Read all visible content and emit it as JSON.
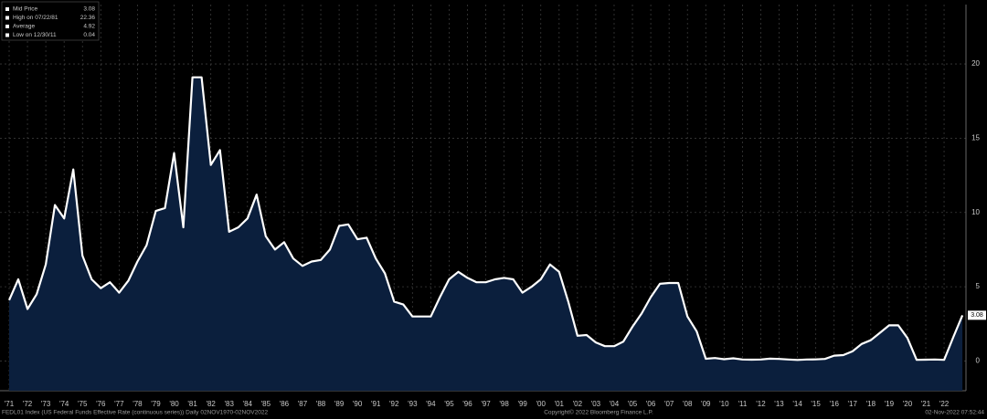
{
  "chart_data": {
    "type": "area",
    "legend": [
      {
        "label": "Mid Price",
        "value": 3.08
      },
      {
        "label": "High on 07/22/81",
        "value": 22.36
      },
      {
        "label": "Average",
        "value": 4.92
      },
      {
        "label": "Low on 12/30/11",
        "value": 0.04
      }
    ],
    "footer_left": "FEDL01 Index (US Federal Funds Effective Rate (continuous series)) Daily 02NOV1970-02NOV2022",
    "footer_center": "Copyright© 2022 Bloomberg Finance L.P.",
    "footer_right": "02-Nov-2022 07:52:44",
    "categories": [
      "'71",
      null,
      "'72",
      null,
      "'73",
      null,
      "'74",
      null,
      "'75",
      null,
      "'76",
      null,
      "'77",
      null,
      "'78",
      null,
      "'79",
      null,
      "'80",
      null,
      "'81",
      null,
      "'82",
      null,
      "'83",
      null,
      "'84",
      null,
      "'85",
      null,
      "'86",
      null,
      "'87",
      null,
      "'88",
      null,
      "'89",
      null,
      "'90",
      null,
      "'91",
      null,
      "'92",
      null,
      "'93",
      null,
      "'94",
      null,
      "'95",
      null,
      "'96",
      null,
      "'97",
      null,
      "'98",
      null,
      "'99",
      null,
      "'00",
      null,
      "'01",
      null,
      "'02",
      null,
      "'03",
      null,
      "'04",
      null,
      "'05",
      null,
      "'06",
      null,
      "'07",
      null,
      "'08",
      null,
      "'09",
      null,
      "'10",
      null,
      "'11",
      null,
      "'12",
      null,
      "'13",
      null,
      "'14",
      null,
      "'15",
      null,
      "'16",
      null,
      "'17",
      null,
      "'18",
      null,
      "'19",
      null,
      "'20",
      null,
      "'21",
      null,
      "'22",
      null,
      null
    ],
    "series": [
      {
        "name": "Mid Price",
        "color": "#ffffff",
        "fill": "#0b1f3d",
        "values": [
          4.1,
          5.5,
          3.5,
          4.5,
          6.5,
          10.5,
          9.6,
          12.9,
          7.1,
          5.5,
          4.9,
          5.3,
          4.6,
          5.4,
          6.7,
          7.8,
          10.1,
          10.3,
          14.0,
          9.0,
          19.1,
          19.1,
          13.2,
          14.2,
          8.7,
          9.0,
          9.6,
          11.2,
          8.4,
          7.5,
          8.0,
          6.9,
          6.4,
          6.7,
          6.8,
          7.5,
          9.1,
          9.2,
          8.2,
          8.3,
          6.9,
          5.9,
          4.0,
          3.8,
          3.0,
          3.0,
          3.0,
          4.3,
          5.5,
          6.0,
          5.6,
          5.3,
          5.3,
          5.5,
          5.6,
          5.5,
          4.6,
          5.0,
          5.5,
          6.5,
          6.0,
          4.0,
          1.7,
          1.75,
          1.25,
          1.0,
          1.0,
          1.3,
          2.3,
          3.2,
          4.3,
          5.2,
          5.25,
          5.25,
          3.0,
          2.0,
          0.15,
          0.2,
          0.12,
          0.18,
          0.1,
          0.09,
          0.1,
          0.16,
          0.14,
          0.1,
          0.07,
          0.1,
          0.11,
          0.14,
          0.36,
          0.4,
          0.65,
          1.15,
          1.4,
          1.9,
          2.4,
          2.4,
          1.55,
          0.08,
          0.09,
          0.1,
          0.08,
          1.6,
          3.08
        ]
      }
    ],
    "ylim": [
      -2,
      24
    ],
    "yticks": [
      0,
      5,
      10,
      15,
      20
    ],
    "grid": true
  }
}
